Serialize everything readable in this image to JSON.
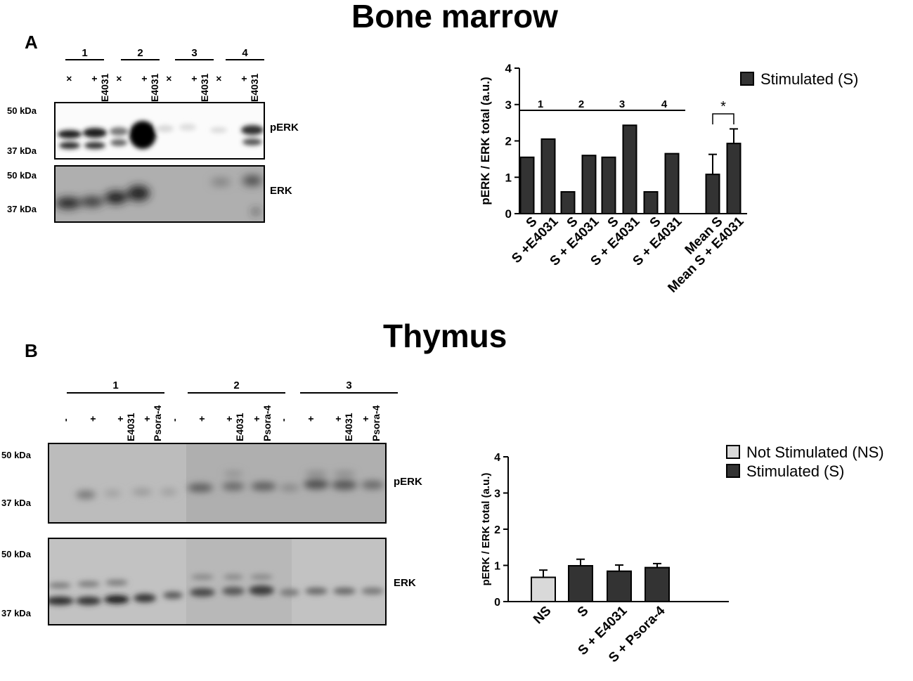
{
  "panel_a": {
    "section_title": "Bone marrow",
    "letter": "A",
    "groups": [
      "1",
      "2",
      "3",
      "4"
    ],
    "lanes": [
      {
        "sign": "×",
        "drug": ""
      },
      {
        "sign": "+",
        "drug": "E4031"
      },
      {
        "sign": "×",
        "drug": ""
      },
      {
        "sign": "+",
        "drug": "E4031"
      },
      {
        "sign": "×",
        "drug": ""
      },
      {
        "sign": "+",
        "drug": "E4031"
      },
      {
        "sign": "×",
        "drug": ""
      },
      {
        "sign": "+",
        "drug": "E4031"
      }
    ],
    "blots": [
      {
        "protein": "pERK",
        "markers": [
          "50 kDa",
          "37 kDa"
        ]
      },
      {
        "protein": "ERK",
        "markers": [
          "50 kDa",
          "37 kDa"
        ]
      }
    ]
  },
  "panel_b": {
    "section_title": "Thymus",
    "letter": "B",
    "groups": [
      "1",
      "2",
      "3"
    ],
    "lanes": [
      {
        "sign": "-",
        "drug": ""
      },
      {
        "sign": "+",
        "drug": ""
      },
      {
        "sign": "+",
        "drug": "E4031"
      },
      {
        "sign": "+",
        "drug": "Psora-4"
      },
      {
        "sign": "-",
        "drug": ""
      },
      {
        "sign": "+",
        "drug": ""
      },
      {
        "sign": "+",
        "drug": "E4031"
      },
      {
        "sign": "+",
        "drug": "Psora-4"
      },
      {
        "sign": "-",
        "drug": ""
      },
      {
        "sign": "+",
        "drug": ""
      },
      {
        "sign": "+",
        "drug": "E4031"
      },
      {
        "sign": "+",
        "drug": "Psora-4"
      }
    ],
    "blots": [
      {
        "protein": "pERK",
        "markers": [
          "50 kDa",
          "37 kDa"
        ]
      },
      {
        "protein": "ERK",
        "markers": [
          "50 kDa",
          "37 kDa"
        ]
      }
    ]
  },
  "chart_data": [
    {
      "type": "bar",
      "ylabel": "pERK / ERK total (a.u.)",
      "ylim": [
        0,
        4
      ],
      "yticks": [
        "0",
        "1",
        "2",
        "3",
        "4"
      ],
      "categories": [
        "S",
        "S +E4031",
        "S",
        "S + E4031",
        "S",
        "S + E4031",
        "S",
        "S + E4031",
        "Mean S",
        "Mean S + E4031"
      ],
      "values": [
        1.55,
        2.05,
        0.6,
        1.6,
        1.55,
        2.43,
        0.6,
        1.65,
        1.08,
        1.93
      ],
      "errors": [
        null,
        null,
        null,
        null,
        null,
        null,
        null,
        null,
        0.55,
        0.4
      ],
      "group_labels": [
        "1",
        "2",
        "3",
        "4"
      ],
      "significance": "*",
      "legend": {
        "position": "top-right",
        "items": [
          {
            "label": "Stimulated (S)",
            "color": "#333333"
          }
        ]
      },
      "colors": {
        "stimulated": "#333333"
      }
    },
    {
      "type": "bar",
      "ylabel": "pERK / ERK total (a.u.)",
      "ylim": [
        0,
        4
      ],
      "yticks": [
        "0",
        "1",
        "2",
        "3",
        "4"
      ],
      "categories": [
        "NS",
        "S",
        "S + E4031",
        "S + Psora-4"
      ],
      "values": [
        0.67,
        0.99,
        0.84,
        0.94
      ],
      "errors": [
        0.2,
        0.18,
        0.17,
        0.11
      ],
      "legend": {
        "position": "top-right",
        "items": [
          {
            "label": "Not Stimulated (NS)",
            "color": "#d9d9d9"
          },
          {
            "label": "Stimulated (S)",
            "color": "#333333"
          }
        ]
      },
      "colors": {
        "not_stimulated": "#d9d9d9",
        "stimulated": "#333333"
      }
    }
  ]
}
